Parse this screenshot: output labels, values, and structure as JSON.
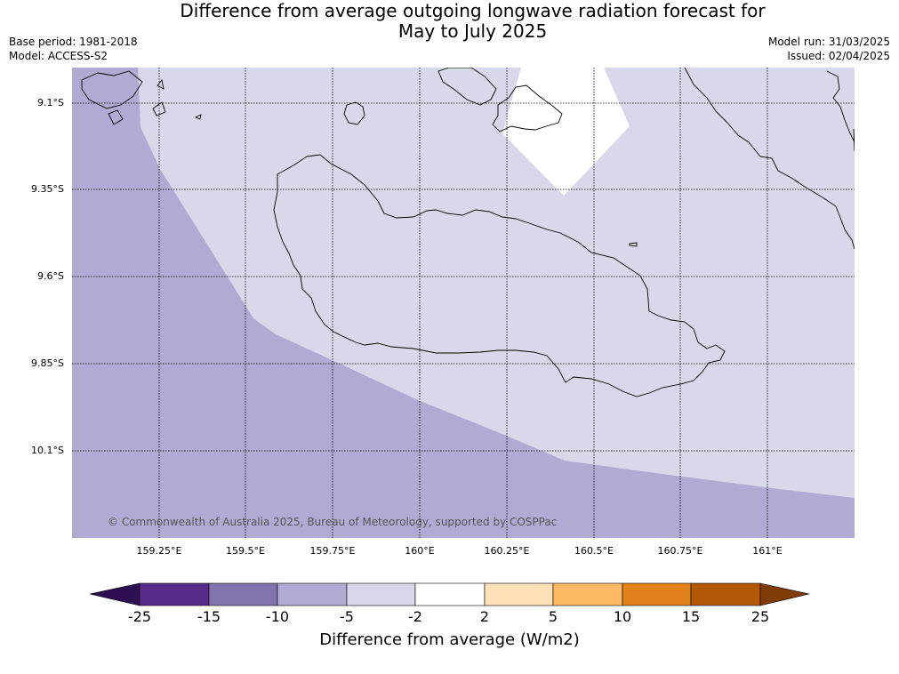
{
  "title": {
    "line1": "Difference from average outgoing longwave radiation forecast for",
    "line2": "May to July 2025"
  },
  "meta": {
    "base_period": "Base period: 1981-2018",
    "model": "Model: ACCESS-S2",
    "model_run": "Model run: 31/03/2025",
    "issued": "Issued: 02/04/2025"
  },
  "axes": {
    "lat_ticks": [
      "9.1°S",
      "9.35°S",
      "9.6°S",
      "9.85°S",
      "10.1°S"
    ],
    "lon_ticks": [
      "159.25°E",
      "159.5°E",
      "159.75°E",
      "160°E",
      "160.25°E",
      "160.5°E",
      "160.75°E",
      "161°E"
    ]
  },
  "copyright": "© Commonwealth of Australia 2025, Bureau of Meteorology, supported by COSPPac",
  "colorbar": {
    "label": "Difference from average (W/m2)",
    "ticks": [
      "-25",
      "-15",
      "-10",
      "-5",
      "-2",
      "2",
      "5",
      "10",
      "15",
      "25"
    ],
    "colors": [
      "#2d0f52",
      "#582a8a",
      "#8272ae",
      "#b1aad2",
      "#d8d8ea",
      "#ffffff",
      "#fee1b8",
      "#feb965",
      "#e2821a",
      "#b35806",
      "#7f3b08"
    ]
  },
  "regions": {
    "colors": {
      "minus10_to_minus5": "#b1aad2",
      "minus5_to_minus2": "#d8d8ea",
      "minus2_to_2": "#ffffff"
    }
  }
}
